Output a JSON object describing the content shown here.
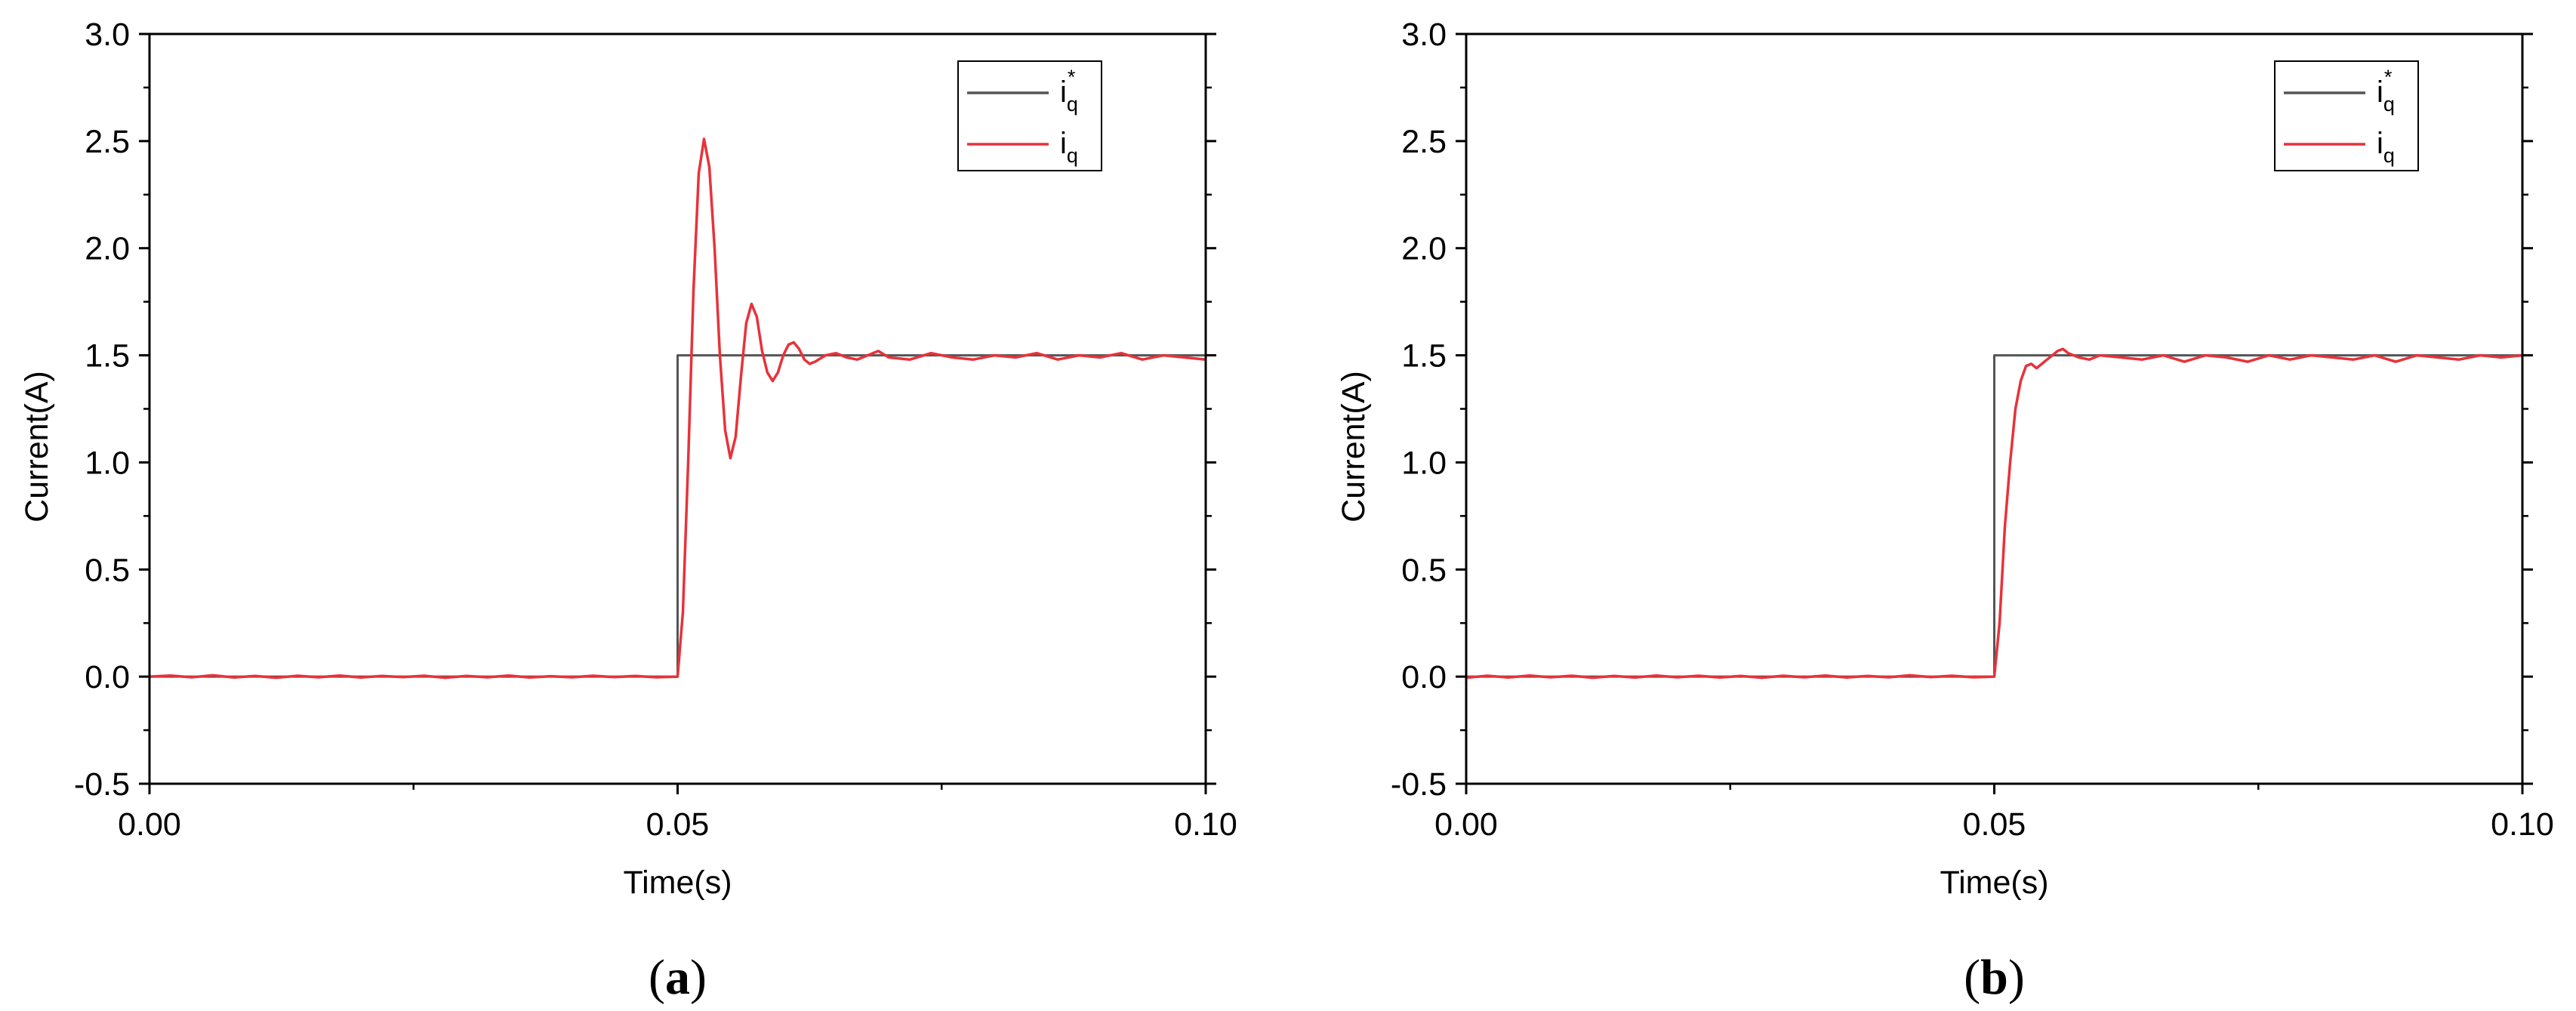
{
  "chart_data": [
    {
      "type": "line",
      "panel_label": "a",
      "xlabel": "Time(s)",
      "ylabel": "Current(A)",
      "xlim": [
        0.0,
        0.1
      ],
      "ylim": [
        -0.5,
        3.0
      ],
      "xticks": [
        "0.00",
        "0.05",
        "0.10"
      ],
      "yticks": [
        "-0.5",
        "0.0",
        "0.5",
        "1.0",
        "1.5",
        "2.0",
        "2.5",
        "3.0"
      ],
      "grid": false,
      "legend_position": "top-right",
      "series": [
        {
          "name": "i_q*",
          "label_main": "i",
          "label_sub": "q",
          "label_sup": "*",
          "color": "#555555",
          "points": [
            [
              0.0,
              0.0
            ],
            [
              0.05,
              0.0
            ],
            [
              0.05,
              1.5
            ],
            [
              0.1,
              1.5
            ]
          ]
        },
        {
          "name": "i_q",
          "label_main": "i",
          "label_sub": "q",
          "label_sup": "",
          "color": "#e8323a",
          "points": [
            [
              0.0,
              0.0
            ],
            [
              0.002,
              0.005
            ],
            [
              0.004,
              -0.003
            ],
            [
              0.006,
              0.006
            ],
            [
              0.008,
              -0.004
            ],
            [
              0.01,
              0.003
            ],
            [
              0.012,
              -0.005
            ],
            [
              0.014,
              0.004
            ],
            [
              0.016,
              -0.003
            ],
            [
              0.018,
              0.005
            ],
            [
              0.02,
              -0.004
            ],
            [
              0.022,
              0.003
            ],
            [
              0.024,
              -0.002
            ],
            [
              0.026,
              0.004
            ],
            [
              0.028,
              -0.005
            ],
            [
              0.03,
              0.003
            ],
            [
              0.032,
              -0.003
            ],
            [
              0.034,
              0.005
            ],
            [
              0.036,
              -0.004
            ],
            [
              0.038,
              0.002
            ],
            [
              0.04,
              -0.003
            ],
            [
              0.042,
              0.004
            ],
            [
              0.044,
              -0.002
            ],
            [
              0.046,
              0.003
            ],
            [
              0.048,
              -0.003
            ],
            [
              0.05,
              0.0
            ],
            [
              0.0505,
              0.3
            ],
            [
              0.051,
              1.0
            ],
            [
              0.0515,
              1.8
            ],
            [
              0.052,
              2.35
            ],
            [
              0.0525,
              2.51
            ],
            [
              0.053,
              2.38
            ],
            [
              0.0535,
              2.0
            ],
            [
              0.054,
              1.5
            ],
            [
              0.0545,
              1.15
            ],
            [
              0.055,
              1.02
            ],
            [
              0.0555,
              1.12
            ],
            [
              0.056,
              1.4
            ],
            [
              0.0565,
              1.65
            ],
            [
              0.057,
              1.74
            ],
            [
              0.0575,
              1.68
            ],
            [
              0.058,
              1.52
            ],
            [
              0.0585,
              1.42
            ],
            [
              0.059,
              1.38
            ],
            [
              0.0595,
              1.42
            ],
            [
              0.06,
              1.5
            ],
            [
              0.0605,
              1.55
            ],
            [
              0.061,
              1.56
            ],
            [
              0.0615,
              1.53
            ],
            [
              0.062,
              1.48
            ],
            [
              0.0625,
              1.46
            ],
            [
              0.063,
              1.47
            ],
            [
              0.064,
              1.5
            ],
            [
              0.065,
              1.51
            ],
            [
              0.066,
              1.49
            ],
            [
              0.067,
              1.48
            ],
            [
              0.068,
              1.5
            ],
            [
              0.069,
              1.52
            ],
            [
              0.07,
              1.49
            ],
            [
              0.072,
              1.48
            ],
            [
              0.074,
              1.51
            ],
            [
              0.076,
              1.49
            ],
            [
              0.078,
              1.48
            ],
            [
              0.08,
              1.5
            ],
            [
              0.082,
              1.49
            ],
            [
              0.084,
              1.51
            ],
            [
              0.086,
              1.48
            ],
            [
              0.088,
              1.5
            ],
            [
              0.09,
              1.49
            ],
            [
              0.092,
              1.51
            ],
            [
              0.094,
              1.48
            ],
            [
              0.096,
              1.5
            ],
            [
              0.098,
              1.49
            ],
            [
              0.1,
              1.48
            ]
          ]
        }
      ]
    },
    {
      "type": "line",
      "panel_label": "b",
      "xlabel": "Time(s)",
      "ylabel": "Current(A)",
      "xlim": [
        0.0,
        0.1
      ],
      "ylim": [
        -0.5,
        3.0
      ],
      "xticks": [
        "0.00",
        "0.05",
        "0.10"
      ],
      "yticks": [
        "-0.5",
        "0.0",
        "0.5",
        "1.0",
        "1.5",
        "2.0",
        "2.5",
        "3.0"
      ],
      "grid": false,
      "legend_position": "top-right",
      "series": [
        {
          "name": "i_q*",
          "label_main": "i",
          "label_sub": "q",
          "label_sup": "*",
          "color": "#555555",
          "points": [
            [
              0.0,
              0.0
            ],
            [
              0.05,
              0.0
            ],
            [
              0.05,
              1.5
            ],
            [
              0.1,
              1.5
            ]
          ]
        },
        {
          "name": "i_q",
          "label_main": "i",
          "label_sub": "q",
          "label_sup": "",
          "color": "#e8323a",
          "points": [
            [
              0.0,
              -0.005
            ],
            [
              0.002,
              0.004
            ],
            [
              0.004,
              -0.004
            ],
            [
              0.006,
              0.005
            ],
            [
              0.008,
              -0.003
            ],
            [
              0.01,
              0.004
            ],
            [
              0.012,
              -0.005
            ],
            [
              0.014,
              0.003
            ],
            [
              0.016,
              -0.004
            ],
            [
              0.018,
              0.005
            ],
            [
              0.02,
              -0.003
            ],
            [
              0.022,
              0.004
            ],
            [
              0.024,
              -0.004
            ],
            [
              0.026,
              0.003
            ],
            [
              0.028,
              -0.005
            ],
            [
              0.03,
              0.004
            ],
            [
              0.032,
              -0.003
            ],
            [
              0.034,
              0.005
            ],
            [
              0.036,
              -0.004
            ],
            [
              0.038,
              0.003
            ],
            [
              0.04,
              -0.003
            ],
            [
              0.042,
              0.006
            ],
            [
              0.044,
              -0.002
            ],
            [
              0.046,
              0.004
            ],
            [
              0.048,
              -0.003
            ],
            [
              0.05,
              0.0
            ],
            [
              0.0505,
              0.25
            ],
            [
              0.051,
              0.7
            ],
            [
              0.0515,
              1.0
            ],
            [
              0.052,
              1.25
            ],
            [
              0.0525,
              1.38
            ],
            [
              0.053,
              1.45
            ],
            [
              0.0535,
              1.46
            ],
            [
              0.054,
              1.44
            ],
            [
              0.0545,
              1.46
            ],
            [
              0.055,
              1.48
            ],
            [
              0.0555,
              1.5
            ],
            [
              0.056,
              1.52
            ],
            [
              0.0565,
              1.53
            ],
            [
              0.057,
              1.51
            ],
            [
              0.058,
              1.49
            ],
            [
              0.059,
              1.48
            ],
            [
              0.06,
              1.5
            ],
            [
              0.062,
              1.49
            ],
            [
              0.064,
              1.48
            ],
            [
              0.066,
              1.5
            ],
            [
              0.068,
              1.47
            ],
            [
              0.07,
              1.5
            ],
            [
              0.072,
              1.49
            ],
            [
              0.074,
              1.47
            ],
            [
              0.076,
              1.5
            ],
            [
              0.078,
              1.48
            ],
            [
              0.08,
              1.5
            ],
            [
              0.082,
              1.49
            ],
            [
              0.084,
              1.48
            ],
            [
              0.086,
              1.5
            ],
            [
              0.088,
              1.47
            ],
            [
              0.09,
              1.5
            ],
            [
              0.092,
              1.49
            ],
            [
              0.094,
              1.48
            ],
            [
              0.096,
              1.5
            ],
            [
              0.098,
              1.49
            ],
            [
              0.1,
              1.5
            ]
          ]
        }
      ]
    }
  ]
}
